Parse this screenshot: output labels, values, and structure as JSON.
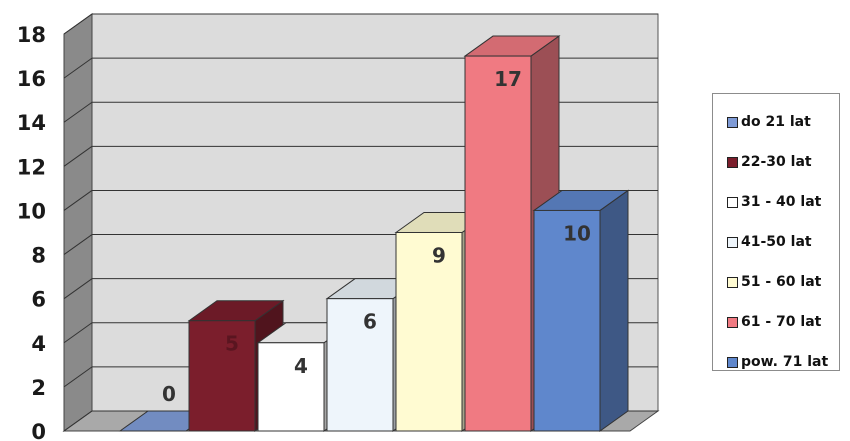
{
  "chart_data": {
    "type": "bar",
    "categories": [
      "do 21 lat",
      "22-30 lat",
      "31 - 40 lat",
      "41-50 lat",
      "51 - 60 lat",
      "61 - 70 lat",
      "pow. 71 lat"
    ],
    "values": [
      0,
      5,
      4,
      6,
      9,
      17,
      10
    ],
    "data_labels": [
      "0",
      "5",
      "4",
      "6",
      "9",
      "17",
      "10"
    ],
    "colors": [
      "#7f9bd6",
      "#7b1e2c",
      "#ffffff",
      "#eef5fb",
      "#fffbd2",
      "#f07a82",
      "#5f87cc"
    ],
    "ylim": [
      0,
      18
    ],
    "yticks": [
      0,
      2,
      4,
      6,
      8,
      10,
      12,
      14,
      16,
      18
    ],
    "ytick_labels": [
      "0",
      "2",
      "4",
      "6",
      "8",
      "10",
      "12",
      "14",
      "16",
      "18"
    ],
    "grid": true,
    "three_d": true,
    "legend_position": "right",
    "title": "",
    "xlabel": "",
    "ylabel": ""
  }
}
